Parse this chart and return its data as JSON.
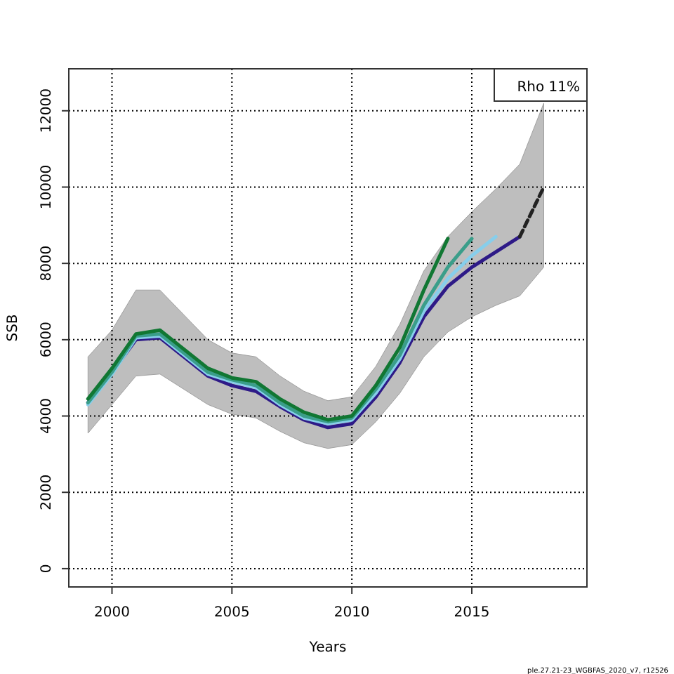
{
  "chart_data": {
    "type": "line",
    "xlabel": "Years",
    "ylabel": "SSB",
    "xlim": [
      1998.2,
      2019.8
    ],
    "ylim": [
      -480,
      13100
    ],
    "xticks": [
      2000,
      2005,
      2010,
      2015
    ],
    "yticks": [
      0,
      2000,
      4000,
      6000,
      8000,
      10000,
      12000
    ],
    "grid": true,
    "line_style": "solid",
    "marker": "none",
    "annotations": [
      "Rho 11%",
      "ple.27.21-23_WGBFAS_2020_v7, r12526"
    ],
    "series": [
      {
        "color": "#2e1a87",
        "x": [
          1999,
          2000,
          2001,
          2002,
          2003,
          2004,
          2005,
          2006,
          2007,
          2008,
          2009,
          2010,
          2011,
          2012,
          2013,
          2014,
          2015,
          2016,
          2017,
          2018
        ],
        "values": [
          4350,
          5150,
          6000,
          6050,
          5550,
          5050,
          4800,
          4650,
          4250,
          3900,
          3700,
          3800,
          4500,
          5400,
          6600,
          7400,
          7900,
          8300,
          8700,
          null
        ],
        "lower": [
          3550,
          4300,
          5050,
          5100,
          4700,
          4300,
          4050,
          3950,
          3600,
          3300,
          3150,
          3250,
          3850,
          4600,
          5550,
          6200,
          6600,
          6900,
          7150,
          7900
        ],
        "upper": [
          5550,
          6250,
          7300,
          7300,
          6650,
          6000,
          5650,
          5550,
          5050,
          4650,
          4400,
          4500,
          5300,
          6400,
          7800,
          8700,
          9350,
          9950,
          10600,
          12200
        ]
      },
      {
        "color": "#222222",
        "line_style": "dashed",
        "x": [
          2017,
          2018
        ],
        "values": [
          8700,
          10000
        ]
      },
      {
        "color": "#87ceeb",
        "x": [
          1999,
          2000,
          2001,
          2002,
          2003,
          2004,
          2005,
          2006,
          2007,
          2008,
          2009,
          2010,
          2011,
          2012,
          2013,
          2014,
          2015,
          2016
        ],
        "values": [
          4300,
          5100,
          6050,
          6100,
          5600,
          5100,
          4900,
          4750,
          4300,
          3950,
          3800,
          3900,
          4600,
          5500,
          6750,
          7600,
          8200,
          8700
        ]
      },
      {
        "color": "#3a9e8a",
        "x": [
          1999,
          2000,
          2001,
          2002,
          2003,
          2004,
          2005,
          2006,
          2007,
          2008,
          2009,
          2010,
          2011,
          2012,
          2013,
          2014,
          2015
        ],
        "values": [
          4350,
          5150,
          6100,
          6150,
          5650,
          5150,
          4950,
          4800,
          4350,
          4000,
          3850,
          3950,
          4700,
          5600,
          6900,
          7900,
          8650
        ]
      },
      {
        "color": "#117733",
        "x": [
          1999,
          2000,
          2001,
          2002,
          2003,
          2004,
          2005,
          2006,
          2007,
          2008,
          2009,
          2010,
          2011,
          2012,
          2013,
          2014
        ],
        "values": [
          4450,
          5250,
          6150,
          6250,
          5750,
          5250,
          5000,
          4900,
          4450,
          4100,
          3900,
          4000,
          4800,
          5800,
          7300,
          8650
        ]
      }
    ]
  }
}
